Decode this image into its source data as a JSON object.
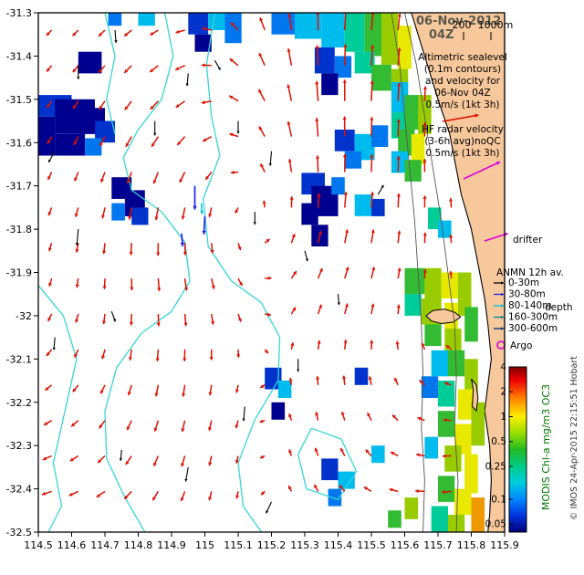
{
  "header": {
    "date_line1": "06-Nov-2012",
    "date_line2": "04Z",
    "depth_scale": {
      "label_200": "200",
      "label_1000": "1000m"
    }
  },
  "legend": {
    "altimetric_lines": [
      "Altimetric sealevel",
      "(0.1m contours)",
      "and velocity for",
      "06-Nov 04Z",
      "0.5m/s (1kt 3h)"
    ],
    "hf_radar_lines": [
      "HF radar velocity",
      "(3-6h avg)noQC",
      "0.5m/s (1kt 3h)"
    ],
    "drifter_label": "drifter",
    "anmn_title": "ANMN 12h av.",
    "anmn_depth_items": [
      {
        "label": "0-30m",
        "color": "#000000"
      },
      {
        "label": "30-80m",
        "color": "#2222dd"
      },
      {
        "label": "80-140m",
        "color": "#00bbdd"
      },
      {
        "label": "160-300m",
        "color": "#008899"
      },
      {
        "label": "300-600m",
        "color": "#003377"
      }
    ],
    "depth_word": "depth",
    "argo_label": "Argo",
    "sample_colors": {
      "altimetric": "#dd1100",
      "hf_radar": "#dd00dd",
      "drifter": "#dd00dd",
      "argo": "#dd00dd"
    }
  },
  "colorbar": {
    "title": "MODIS Chl-a mg/m3 OC3",
    "title_color": "#007700",
    "tick_labels": [
      "4",
      "2",
      "1",
      "0.5",
      "0.25",
      "0.1",
      "0.05"
    ],
    "tick_values": [
      4,
      2,
      1,
      0.5,
      0.25,
      0.1,
      0.05
    ],
    "value_range": [
      0.04,
      4
    ],
    "gradient_stops": [
      [
        0,
        "#7f0000"
      ],
      [
        0.08,
        "#ee0000"
      ],
      [
        0.18,
        "#ff7700"
      ],
      [
        0.3,
        "#ffee00"
      ],
      [
        0.4,
        "#99dd00"
      ],
      [
        0.5,
        "#22bb22"
      ],
      [
        0.6,
        "#00cc88"
      ],
      [
        0.7,
        "#00ccdd"
      ],
      [
        0.8,
        "#0088ff"
      ],
      [
        0.9,
        "#0033dd"
      ],
      [
        1,
        "#000077"
      ]
    ]
  },
  "credit": "© IMOS 24-Apr-2015 22:15:51 Hobart",
  "chart_data": {
    "type": "map",
    "title": "06-Nov-2012 04Z",
    "axes": {
      "lon_min": 114.5,
      "lon_max": 115.9,
      "lat_min": -32.5,
      "lat_max": -31.3,
      "x_ticks": [
        114.5,
        114.6,
        114.7,
        114.8,
        114.9,
        115,
        115.1,
        115.2,
        115.3,
        115.4,
        115.5,
        115.6,
        115.7,
        115.8,
        115.9
      ],
      "y_ticks": [
        -31.3,
        -31.4,
        -31.5,
        -31.6,
        -31.7,
        -31.8,
        -31.9,
        -32,
        -32.1,
        -32.2,
        -32.3,
        -32.4,
        -32.5
      ]
    },
    "colors": {
      "land": "#f7c89c",
      "coast": "#000000",
      "sealevel_contour": "#35d6d6",
      "bathymetry": "#555555",
      "red_arrow": "#dd1100",
      "black_arrow": "#000000",
      "blue_arrow": "#2222dd",
      "cyan_arrow": "#00bbdd"
    },
    "coastline": [
      [
        115.62,
        -31.3
      ],
      [
        115.66,
        -31.4
      ],
      [
        115.7,
        -31.5
      ],
      [
        115.735,
        -31.58
      ],
      [
        115.75,
        -31.64
      ],
      [
        115.77,
        -31.72
      ],
      [
        115.8,
        -31.8
      ],
      [
        115.82,
        -31.88
      ],
      [
        115.84,
        -31.96
      ],
      [
        115.85,
        -32.02
      ],
      [
        115.86,
        -32.1
      ],
      [
        115.85,
        -32.16
      ],
      [
        115.84,
        -32.22
      ],
      [
        115.855,
        -32.3
      ],
      [
        115.86,
        -32.38
      ],
      [
        115.855,
        -32.46
      ],
      [
        115.85,
        -32.5
      ]
    ],
    "islands": [
      [
        [
          115.664,
          -32.0
        ],
        [
          115.685,
          -31.988
        ],
        [
          115.72,
          -31.985
        ],
        [
          115.75,
          -31.992
        ],
        [
          115.768,
          -32.003
        ],
        [
          115.745,
          -32.015
        ],
        [
          115.71,
          -32.018
        ],
        [
          115.68,
          -32.012
        ]
      ],
      [
        [
          115.8,
          -32.146
        ],
        [
          115.815,
          -32.16
        ],
        [
          115.82,
          -32.19
        ],
        [
          115.815,
          -32.22
        ],
        [
          115.803,
          -32.21
        ],
        [
          115.806,
          -32.17
        ]
      ]
    ],
    "bathymetry_contours": [
      [
        [
          115.6,
          -31.3
        ],
        [
          115.635,
          -31.42
        ],
        [
          115.66,
          -31.54
        ],
        [
          115.685,
          -31.66
        ],
        [
          115.71,
          -31.78
        ],
        [
          115.73,
          -31.9
        ],
        [
          115.75,
          -32.02
        ],
        [
          115.755,
          -32.14
        ],
        [
          115.75,
          -32.26
        ],
        [
          115.76,
          -32.38
        ],
        [
          115.755,
          -32.5
        ]
      ],
      [
        [
          115.56,
          -31.3
        ],
        [
          115.585,
          -31.42
        ],
        [
          115.6,
          -31.54
        ],
        [
          115.615,
          -31.66
        ],
        [
          115.63,
          -31.78
        ],
        [
          115.64,
          -31.9
        ],
        [
          115.65,
          -32.02
        ],
        [
          115.655,
          -32.14
        ],
        [
          115.65,
          -32.26
        ],
        [
          115.66,
          -32.38
        ],
        [
          115.655,
          -32.5
        ]
      ]
    ],
    "sealevel_contours": [
      [
        [
          114.88,
          -31.3
        ],
        [
          114.905,
          -31.4
        ],
        [
          114.87,
          -31.5
        ],
        [
          114.8,
          -31.57
        ],
        [
          114.755,
          -31.635
        ],
        [
          114.78,
          -31.71
        ],
        [
          114.87,
          -31.76
        ],
        [
          114.94,
          -31.83
        ],
        [
          114.955,
          -31.92
        ],
        [
          114.9,
          -31.99
        ],
        [
          114.81,
          -32.04
        ],
        [
          114.735,
          -32.12
        ],
        [
          114.7,
          -32.22
        ],
        [
          114.705,
          -32.33
        ],
        [
          114.76,
          -32.42
        ],
        [
          114.82,
          -32.5
        ]
      ],
      [
        [
          115.03,
          -31.3
        ],
        [
          115.005,
          -31.42
        ],
        [
          115.02,
          -31.54
        ],
        [
          115.045,
          -31.63
        ],
        [
          114.995,
          -31.73
        ],
        [
          115.01,
          -31.84
        ],
        [
          115.08,
          -31.92
        ],
        [
          115.17,
          -31.97
        ],
        [
          115.225,
          -32.05
        ],
        [
          115.22,
          -32.15
        ],
        [
          115.15,
          -32.24
        ],
        [
          115.1,
          -32.34
        ],
        [
          115.115,
          -32.44
        ],
        [
          115.17,
          -32.5
        ]
      ],
      [
        [
          114.5,
          -31.93
        ],
        [
          114.575,
          -32.0
        ],
        [
          114.615,
          -32.1
        ],
        [
          114.58,
          -32.22
        ],
        [
          114.545,
          -32.34
        ],
        [
          114.57,
          -32.44
        ],
        [
          114.53,
          -32.5
        ]
      ],
      [
        [
          115.32,
          -32.26
        ],
        [
          115.41,
          -32.285
        ],
        [
          115.455,
          -32.36
        ],
        [
          115.4,
          -32.425
        ],
        [
          115.305,
          -32.4
        ],
        [
          115.28,
          -32.32
        ],
        [
          115.32,
          -32.26
        ]
      ],
      [
        [
          114.7,
          -31.3
        ],
        [
          114.73,
          -31.4
        ],
        [
          114.705,
          -31.5
        ],
        [
          114.73,
          -31.58
        ]
      ]
    ],
    "chl_palette": [
      "#000090",
      "#0033cc",
      "#0077ee",
      "#00bbee",
      "#00cc99",
      "#33bb33",
      "#99cc00",
      "#e8e800",
      "#ee9900"
    ],
    "chl_cells": [
      [
        114.95,
        -31.3,
        0.06,
        0.05,
        1
      ],
      [
        115.01,
        -31.3,
        0.05,
        0.04,
        3
      ],
      [
        115.06,
        -31.3,
        0.05,
        0.07,
        2
      ],
      [
        114.97,
        -31.35,
        0.05,
        0.04,
        0
      ],
      [
        114.8,
        -31.3,
        0.05,
        0.03,
        3
      ],
      [
        114.71,
        -31.3,
        0.04,
        0.03,
        2
      ],
      [
        115.2,
        -31.3,
        0.07,
        0.05,
        2
      ],
      [
        115.27,
        -31.3,
        0.08,
        0.06,
        3
      ],
      [
        115.35,
        -31.3,
        0.07,
        0.08,
        3
      ],
      [
        115.42,
        -31.3,
        0.06,
        0.09,
        4
      ],
      [
        115.48,
        -31.3,
        0.05,
        0.1,
        5
      ],
      [
        115.53,
        -31.3,
        0.05,
        0.12,
        6
      ],
      [
        115.58,
        -31.33,
        0.04,
        0.1,
        7
      ],
      [
        115.45,
        -31.39,
        0.06,
        0.05,
        4
      ],
      [
        115.5,
        -31.42,
        0.06,
        0.06,
        5
      ],
      [
        115.56,
        -31.43,
        0.05,
        0.06,
        6
      ],
      [
        115.33,
        -31.38,
        0.06,
        0.06,
        1
      ],
      [
        115.39,
        -31.4,
        0.05,
        0.05,
        2
      ],
      [
        115.35,
        -31.44,
        0.05,
        0.05,
        0
      ],
      [
        114.62,
        -31.39,
        0.07,
        0.05,
        0
      ],
      [
        114.5,
        -31.49,
        0.1,
        0.05,
        1
      ],
      [
        114.55,
        -31.5,
        0.12,
        0.08,
        0
      ],
      [
        114.5,
        -31.54,
        0.05,
        0.09,
        0
      ],
      [
        114.62,
        -31.52,
        0.08,
        0.06,
        0
      ],
      [
        114.67,
        -31.55,
        0.06,
        0.05,
        1
      ],
      [
        114.55,
        -31.58,
        0.09,
        0.05,
        0
      ],
      [
        114.64,
        -31.59,
        0.05,
        0.04,
        2
      ],
      [
        114.72,
        -31.68,
        0.06,
        0.05,
        0
      ],
      [
        114.76,
        -31.71,
        0.06,
        0.06,
        0
      ],
      [
        114.72,
        -31.74,
        0.04,
        0.04,
        2
      ],
      [
        114.78,
        -31.75,
        0.05,
        0.04,
        1
      ],
      [
        115.29,
        -31.67,
        0.07,
        0.05,
        1
      ],
      [
        115.32,
        -31.7,
        0.08,
        0.07,
        0
      ],
      [
        115.29,
        -31.74,
        0.05,
        0.05,
        0
      ],
      [
        115.38,
        -31.68,
        0.04,
        0.04,
        2
      ],
      [
        115.32,
        -31.79,
        0.05,
        0.05,
        0
      ],
      [
        115.39,
        -31.57,
        0.06,
        0.05,
        1
      ],
      [
        115.45,
        -31.58,
        0.06,
        0.06,
        3
      ],
      [
        115.5,
        -31.56,
        0.05,
        0.05,
        2
      ],
      [
        115.42,
        -31.62,
        0.05,
        0.04,
        2
      ],
      [
        115.45,
        -31.72,
        0.05,
        0.05,
        3
      ],
      [
        115.5,
        -31.73,
        0.04,
        0.04,
        1
      ],
      [
        115.56,
        -31.46,
        0.05,
        0.07,
        3
      ],
      [
        115.6,
        -31.49,
        0.05,
        0.08,
        5
      ],
      [
        115.64,
        -31.49,
        0.04,
        0.09,
        6
      ],
      [
        115.56,
        -31.53,
        0.04,
        0.06,
        4
      ],
      [
        115.58,
        -31.57,
        0.05,
        0.06,
        5
      ],
      [
        115.62,
        -31.58,
        0.04,
        0.07,
        7
      ],
      [
        115.56,
        -31.62,
        0.05,
        0.05,
        3
      ],
      [
        115.6,
        -31.64,
        0.05,
        0.05,
        5
      ],
      [
        115.67,
        -31.75,
        0.04,
        0.05,
        4
      ],
      [
        115.7,
        -31.78,
        0.04,
        0.04,
        3
      ],
      [
        115.6,
        -31.89,
        0.06,
        0.06,
        5
      ],
      [
        115.66,
        -31.89,
        0.05,
        0.07,
        6
      ],
      [
        115.71,
        -31.9,
        0.05,
        0.06,
        7
      ],
      [
        115.76,
        -31.9,
        0.04,
        0.1,
        6
      ],
      [
        115.6,
        -31.95,
        0.05,
        0.05,
        4
      ],
      [
        115.65,
        -31.96,
        0.06,
        0.06,
        6
      ],
      [
        115.72,
        -31.97,
        0.04,
        0.06,
        7
      ],
      [
        115.78,
        -31.98,
        0.04,
        0.08,
        5
      ],
      [
        115.66,
        -32.02,
        0.05,
        0.05,
        5
      ],
      [
        115.72,
        -32.03,
        0.05,
        0.05,
        6
      ],
      [
        115.68,
        -32.08,
        0.05,
        0.06,
        3
      ],
      [
        115.73,
        -32.08,
        0.05,
        0.06,
        5
      ],
      [
        115.78,
        -32.1,
        0.04,
        0.08,
        6
      ],
      [
        115.65,
        -32.14,
        0.05,
        0.05,
        2
      ],
      [
        115.7,
        -32.15,
        0.05,
        0.06,
        4
      ],
      [
        115.76,
        -32.17,
        0.05,
        0.07,
        7
      ],
      [
        115.8,
        -32.2,
        0.04,
        0.1,
        6
      ],
      [
        115.7,
        -32.22,
        0.05,
        0.06,
        5
      ],
      [
        115.75,
        -32.25,
        0.05,
        0.07,
        7
      ],
      [
        115.66,
        -32.28,
        0.04,
        0.05,
        3
      ],
      [
        115.72,
        -32.3,
        0.05,
        0.06,
        6
      ],
      [
        115.78,
        -32.32,
        0.04,
        0.09,
        7
      ],
      [
        115.7,
        -32.37,
        0.05,
        0.06,
        5
      ],
      [
        115.75,
        -32.4,
        0.05,
        0.06,
        7
      ],
      [
        115.8,
        -32.42,
        0.04,
        0.08,
        8
      ],
      [
        115.68,
        -32.44,
        0.05,
        0.06,
        4
      ],
      [
        115.73,
        -32.46,
        0.05,
        0.04,
        6
      ],
      [
        115.18,
        -32.12,
        0.05,
        0.05,
        1
      ],
      [
        115.22,
        -32.15,
        0.04,
        0.04,
        3
      ],
      [
        115.2,
        -32.2,
        0.04,
        0.04,
        0
      ],
      [
        115.35,
        -32.33,
        0.05,
        0.05,
        1
      ],
      [
        115.4,
        -32.36,
        0.05,
        0.04,
        3
      ],
      [
        115.37,
        -32.4,
        0.04,
        0.04,
        2
      ],
      [
        115.45,
        -32.12,
        0.04,
        0.04,
        1
      ],
      [
        115.5,
        -32.3,
        0.04,
        0.04,
        3
      ],
      [
        115.55,
        -32.45,
        0.04,
        0.04,
        5
      ],
      [
        115.6,
        -32.42,
        0.04,
        0.05,
        6
      ]
    ],
    "velocity_model": {
      "grid": {
        "lon_start": 114.54,
        "lon_end": 115.86,
        "lat_start": -31.34,
        "lat_end": -32.48,
        "spacing": 0.082
      },
      "background": {
        "u": -0.06,
        "v": -0.05,
        "southward_shear": 0.35,
        "shear_lat": -31.9
      },
      "eddies": [
        {
          "cx": 115.18,
          "cy": -31.75,
          "r": 0.3,
          "s": 0.5,
          "dir": 1
        },
        {
          "cx": 115.15,
          "cy": -32.3,
          "r": 0.22,
          "s": 0.28,
          "dir": 1
        }
      ],
      "jet": {
        "cx": 115.4,
        "cy": -31.4,
        "r": 0.25,
        "u": 0.3,
        "v": 0.6
      }
    },
    "black_arrows": [
      [
        114.62,
        -31.42,
        -90,
        16
      ],
      [
        114.73,
        -31.34,
        -85,
        14
      ],
      [
        114.55,
        -31.62,
        -120,
        14
      ],
      [
        114.62,
        -31.8,
        -95,
        18
      ],
      [
        114.72,
        -31.99,
        -70,
        12
      ],
      [
        114.55,
        -32.05,
        -95,
        14
      ],
      [
        114.85,
        -31.55,
        -90,
        16
      ],
      [
        114.95,
        -31.44,
        -95,
        14
      ],
      [
        115.03,
        -31.41,
        -60,
        12
      ],
      [
        115.1,
        -31.55,
        -90,
        14
      ],
      [
        115.2,
        -31.62,
        -95,
        16
      ],
      [
        115.15,
        -31.76,
        -90,
        14
      ],
      [
        115.3,
        -31.85,
        -75,
        12
      ],
      [
        115.28,
        -32.1,
        -90,
        14
      ],
      [
        115.12,
        -32.21,
        -95,
        16
      ],
      [
        114.95,
        -32.35,
        -100,
        16
      ],
      [
        115.2,
        -32.43,
        -115,
        14
      ],
      [
        114.75,
        -32.31,
        -95,
        12
      ],
      [
        115.4,
        -31.95,
        -85,
        12
      ],
      [
        115.52,
        -31.72,
        60,
        12
      ]
    ],
    "blue_arrows": [
      [
        114.97,
        -31.7,
        -90,
        26
      ],
      [
        115.0,
        -31.77,
        -93,
        20
      ],
      [
        114.93,
        -31.81,
        -85,
        14
      ]
    ],
    "cyan_arrows": [
      [
        114.99,
        -31.74,
        -88,
        12
      ]
    ]
  }
}
